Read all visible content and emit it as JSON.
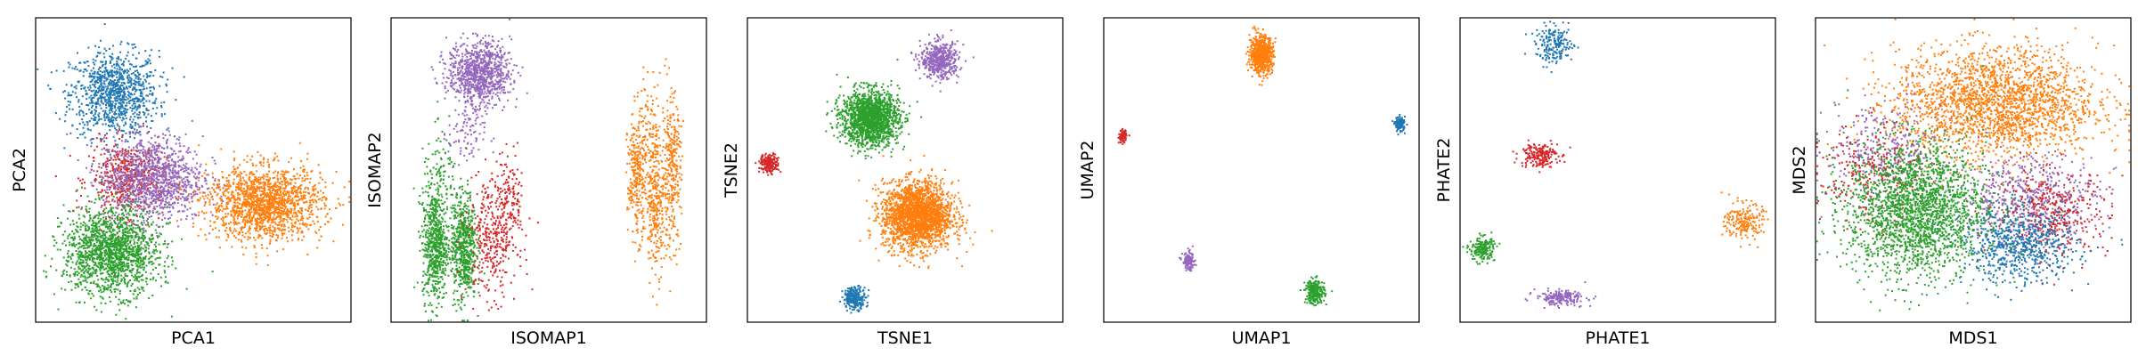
{
  "colors": {
    "blue": "#1f77b4",
    "orange": "#ff7f0e",
    "green": "#2ca02c",
    "red": "#d62728",
    "purple": "#9467bd"
  },
  "chart_data": [
    {
      "type": "scatter",
      "xlabel": "PCA1",
      "ylabel": "PCA2",
      "grid": false,
      "ticks": false,
      "clusters": [
        {
          "color": "blue",
          "cx": 0.25,
          "cy": 0.75,
          "sx": 0.07,
          "sy": 0.07,
          "n": 1000
        },
        {
          "color": "red",
          "cx": 0.29,
          "cy": 0.47,
          "sx": 0.06,
          "sy": 0.06,
          "n": 500
        },
        {
          "color": "purple",
          "cx": 0.37,
          "cy": 0.47,
          "sx": 0.08,
          "sy": 0.07,
          "n": 1100
        },
        {
          "color": "green",
          "cx": 0.24,
          "cy": 0.23,
          "sx": 0.075,
          "sy": 0.07,
          "n": 1600
        },
        {
          "color": "orange",
          "cx": 0.73,
          "cy": 0.39,
          "sx": 0.09,
          "sy": 0.06,
          "n": 1600
        }
      ]
    },
    {
      "type": "scatter",
      "xlabel": "ISOMAP1",
      "ylabel": "ISOMAP2",
      "grid": false,
      "ticks": false,
      "clusters": [
        {
          "color": "purple",
          "cx": 0.28,
          "cy": 0.82,
          "sx": 0.05,
          "sy": 0.05,
          "n": 900
        },
        {
          "color": "purple",
          "cx": 0.24,
          "cy": 0.62,
          "sx": 0.03,
          "sy": 0.06,
          "n": 100
        },
        {
          "color": "green",
          "cx": 0.14,
          "cy": 0.25,
          "sx": 0.02,
          "sy": 0.09,
          "n": 600
        },
        {
          "color": "green",
          "cx": 0.23,
          "cy": 0.25,
          "sx": 0.02,
          "sy": 0.09,
          "n": 600
        },
        {
          "color": "green",
          "cx": 0.16,
          "cy": 0.46,
          "sx": 0.03,
          "sy": 0.08,
          "n": 120
        },
        {
          "color": "red",
          "cx": 0.32,
          "cy": 0.28,
          "sx": 0.04,
          "sy": 0.1,
          "n": 350
        },
        {
          "color": "red",
          "cx": 0.38,
          "cy": 0.4,
          "sx": 0.02,
          "sy": 0.08,
          "n": 120
        },
        {
          "color": "orange",
          "cx": 0.78,
          "cy": 0.48,
          "sx": 0.015,
          "sy": 0.1,
          "n": 300
        },
        {
          "color": "orange",
          "cx": 0.84,
          "cy": 0.41,
          "sx": 0.015,
          "sy": 0.12,
          "n": 300
        },
        {
          "color": "orange",
          "cx": 0.89,
          "cy": 0.5,
          "sx": 0.015,
          "sy": 0.12,
          "n": 300
        },
        {
          "color": "orange",
          "cx": 0.82,
          "cy": 0.68,
          "sx": 0.02,
          "sy": 0.08,
          "n": 60
        }
      ]
    },
    {
      "type": "scatter",
      "xlabel": "TSNE1",
      "ylabel": "TSNE2",
      "grid": false,
      "ticks": false,
      "clusters": [
        {
          "color": "purple",
          "cx": 0.61,
          "cy": 0.86,
          "sx": 0.03,
          "sy": 0.03,
          "n": 500
        },
        {
          "color": "green",
          "cx": 0.39,
          "cy": 0.67,
          "sx": 0.045,
          "sy": 0.045,
          "n": 1600
        },
        {
          "color": "red",
          "cx": 0.07,
          "cy": 0.52,
          "sx": 0.015,
          "sy": 0.015,
          "n": 200
        },
        {
          "color": "orange",
          "cx": 0.54,
          "cy": 0.35,
          "sx": 0.055,
          "sy": 0.055,
          "n": 2200
        },
        {
          "color": "blue",
          "cx": 0.34,
          "cy": 0.08,
          "sx": 0.018,
          "sy": 0.018,
          "n": 250
        }
      ]
    },
    {
      "type": "scatter",
      "xlabel": "UMAP1",
      "ylabel": "UMAP2",
      "grid": false,
      "ticks": false,
      "clusters": [
        {
          "color": "orange",
          "cx": 0.5,
          "cy": 0.88,
          "sx": 0.018,
          "sy": 0.03,
          "n": 700
        },
        {
          "color": "blue",
          "cx": 0.94,
          "cy": 0.65,
          "sx": 0.008,
          "sy": 0.012,
          "n": 120
        },
        {
          "color": "red",
          "cx": 0.06,
          "cy": 0.61,
          "sx": 0.006,
          "sy": 0.01,
          "n": 80
        },
        {
          "color": "purple",
          "cx": 0.27,
          "cy": 0.2,
          "sx": 0.01,
          "sy": 0.015,
          "n": 120
        },
        {
          "color": "green",
          "cx": 0.67,
          "cy": 0.1,
          "sx": 0.015,
          "sy": 0.02,
          "n": 250
        }
      ]
    },
    {
      "type": "scatter",
      "xlabel": "PHATE1",
      "ylabel": "PHATE2",
      "grid": false,
      "ticks": false,
      "clusters": [
        {
          "color": "blue",
          "cx": 0.3,
          "cy": 0.91,
          "sx": 0.03,
          "sy": 0.03,
          "n": 200
        },
        {
          "color": "red",
          "cx": 0.25,
          "cy": 0.55,
          "sx": 0.03,
          "sy": 0.02,
          "n": 200
        },
        {
          "color": "orange",
          "cx": 0.9,
          "cy": 0.33,
          "sx": 0.03,
          "sy": 0.03,
          "n": 200
        },
        {
          "color": "green",
          "cx": 0.07,
          "cy": 0.24,
          "sx": 0.02,
          "sy": 0.02,
          "n": 200
        },
        {
          "color": "purple",
          "cx": 0.32,
          "cy": 0.08,
          "sx": 0.04,
          "sy": 0.012,
          "n": 200
        }
      ]
    },
    {
      "type": "scatter",
      "xlabel": "MDS1",
      "ylabel": "MDS2",
      "grid": false,
      "ticks": false,
      "clusters": [
        {
          "color": "orange",
          "cx": 0.57,
          "cy": 0.72,
          "sx": 0.16,
          "sy": 0.09,
          "n": 2200
        },
        {
          "color": "purple",
          "cx": 0.22,
          "cy": 0.56,
          "sx": 0.09,
          "sy": 0.08,
          "n": 300
        },
        {
          "color": "red",
          "cx": 0.17,
          "cy": 0.48,
          "sx": 0.08,
          "sy": 0.08,
          "n": 250
        },
        {
          "color": "purple",
          "cx": 0.68,
          "cy": 0.41,
          "sx": 0.11,
          "sy": 0.07,
          "n": 500
        },
        {
          "color": "red",
          "cx": 0.75,
          "cy": 0.36,
          "sx": 0.09,
          "sy": 0.07,
          "n": 400
        },
        {
          "color": "blue",
          "cx": 0.65,
          "cy": 0.25,
          "sx": 0.09,
          "sy": 0.06,
          "n": 700
        },
        {
          "color": "green",
          "cx": 0.32,
          "cy": 0.37,
          "sx": 0.11,
          "sy": 0.11,
          "n": 2200
        }
      ]
    }
  ]
}
